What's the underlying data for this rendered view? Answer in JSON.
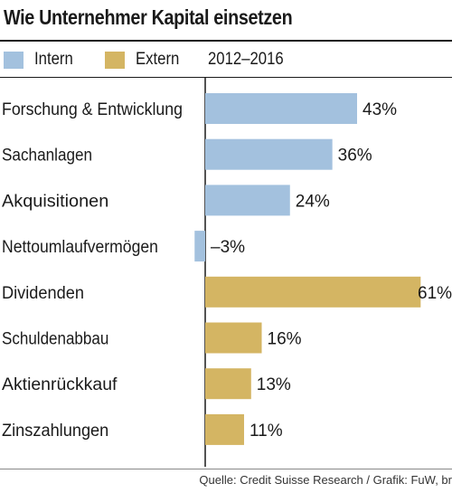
{
  "legend": {
    "intern": "Intern",
    "extern": "Extern",
    "period": "2012–2016"
  },
  "colors": {
    "intern": "#a3c1de",
    "extern": "#d4b563"
  },
  "source": "Quelle: Credit Suisse Research / Grafik: FuW, br",
  "chart_data": {
    "type": "bar",
    "orientation": "horizontal",
    "title": "Wie Unternehmer Kapital einsetzen",
    "categories": [
      "Forschung & Entwicklung",
      "Sachanlagen",
      "Akquisitionen",
      "Nettoumlaufvermögen",
      "Dividenden",
      "Schuldenabbau",
      "Aktienrückkauf",
      "Zinszahlungen"
    ],
    "values": [
      43,
      36,
      24,
      -3,
      61,
      16,
      13,
      11
    ],
    "value_labels": [
      "43%",
      "36%",
      "24%",
      "–3%",
      "61%",
      "16%",
      "13%",
      "11%"
    ],
    "series_group": [
      "Intern",
      "Intern",
      "Intern",
      "Intern",
      "Extern",
      "Extern",
      "Extern",
      "Extern"
    ],
    "unit": "%",
    "xlim": [
      -3,
      61
    ],
    "grid": false,
    "legend_position": "top"
  }
}
